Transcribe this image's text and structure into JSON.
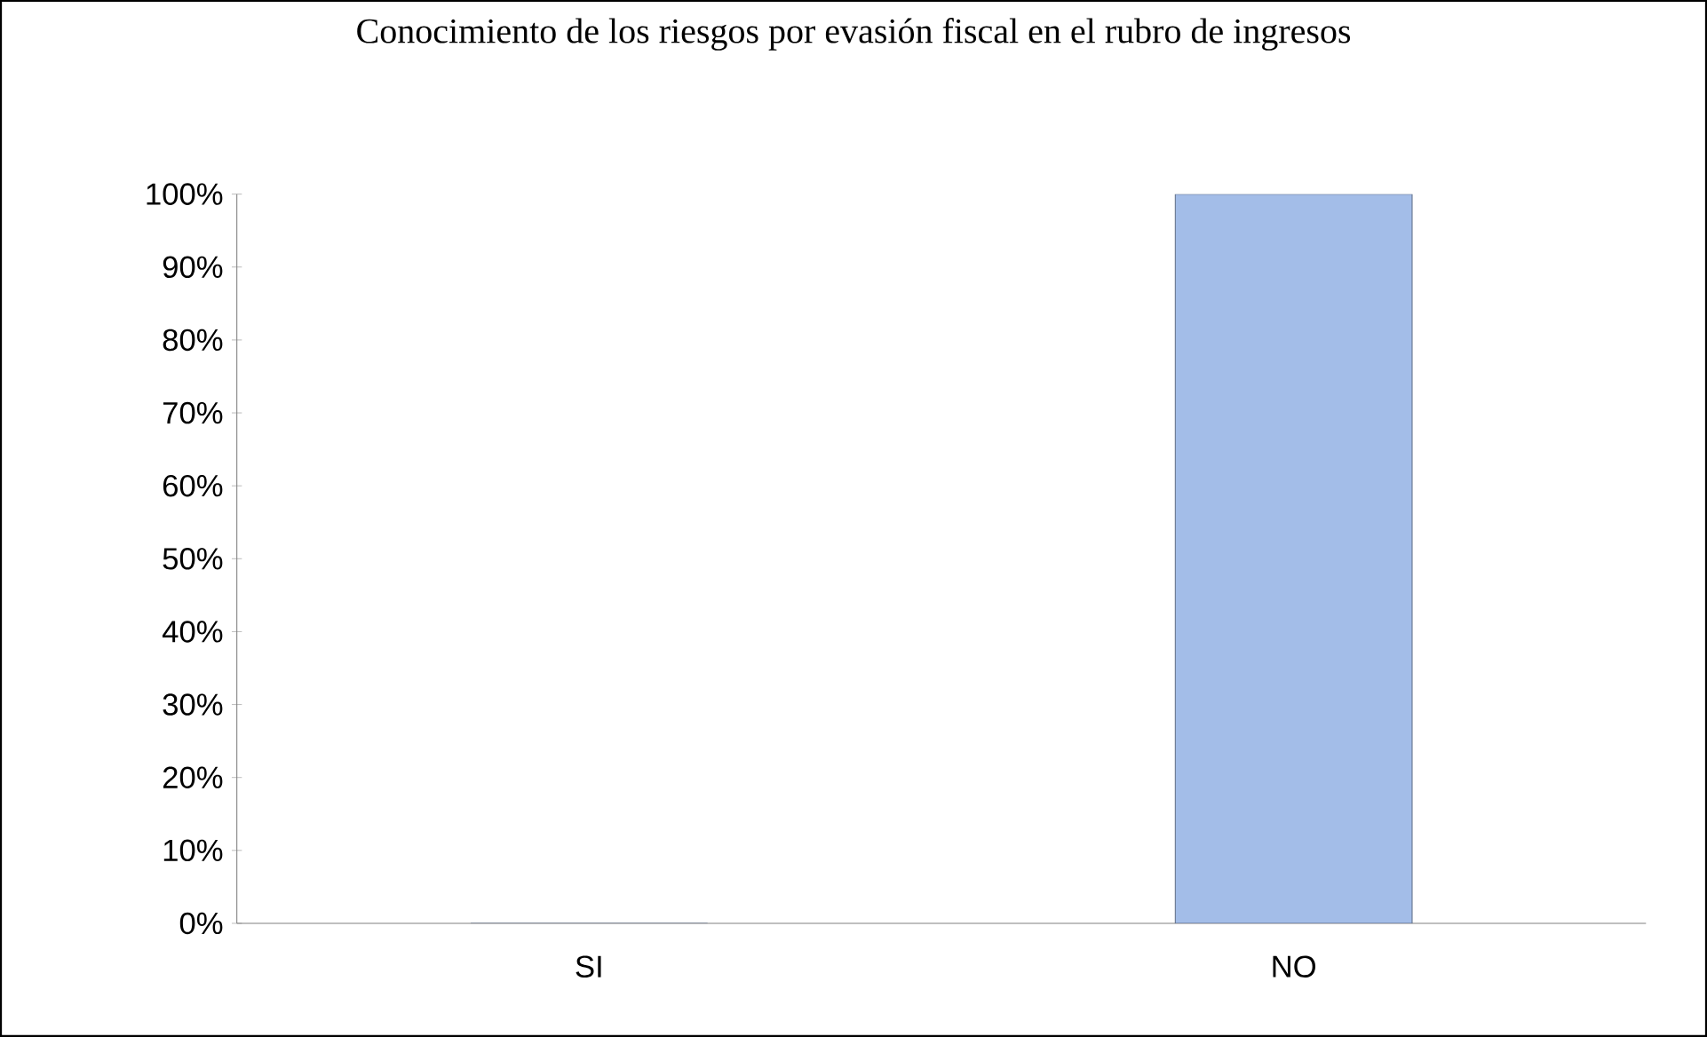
{
  "chart_data": {
    "type": "bar",
    "title": "Conocimiento de los riesgos por evasión fiscal en el rubro de ingresos",
    "categories": [
      "SI",
      "NO"
    ],
    "values": [
      0,
      100
    ],
    "color": "#a3bde8",
    "ylim": [
      0,
      100
    ],
    "yticks": [
      {
        "value": 0,
        "label": "0%"
      },
      {
        "value": 10,
        "label": "10%"
      },
      {
        "value": 20,
        "label": "20%"
      },
      {
        "value": 30,
        "label": "30%"
      },
      {
        "value": 40,
        "label": "40%"
      },
      {
        "value": 50,
        "label": "50%"
      },
      {
        "value": 60,
        "label": "60%"
      },
      {
        "value": 70,
        "label": "70%"
      },
      {
        "value": 80,
        "label": "80%"
      },
      {
        "value": 90,
        "label": "90%"
      },
      {
        "value": 100,
        "label": "100%"
      }
    ],
    "grid": false
  }
}
